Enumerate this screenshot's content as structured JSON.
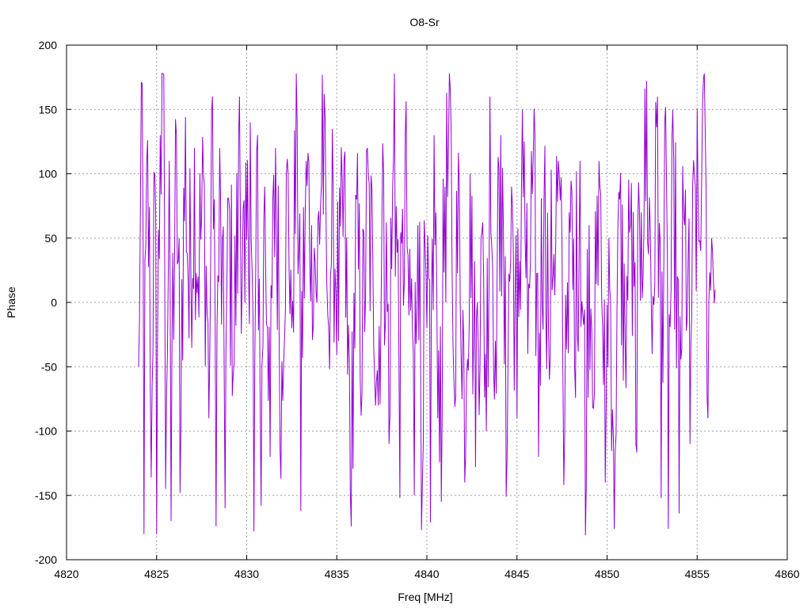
{
  "chart_data": {
    "type": "line",
    "title": "O8-Sr",
    "xlabel": "Freq [MHz]",
    "ylabel": "Phase",
    "xlim": [
      4820,
      4860
    ],
    "ylim": [
      -200,
      200
    ],
    "xticks": [
      4820,
      4825,
      4830,
      4835,
      4840,
      4845,
      4850,
      4855,
      4860
    ],
    "yticks": [
      -200,
      -150,
      -100,
      -50,
      0,
      50,
      100,
      150,
      200
    ],
    "xtick_labels": [
      "4820",
      "4825",
      "4830",
      "4835",
      "4840",
      "4845",
      "4850",
      "4855",
      "4860"
    ],
    "ytick_labels": [
      "-200",
      "-150",
      "-100",
      "-50",
      "0",
      "50",
      "100",
      "150",
      "200"
    ],
    "grid": true,
    "legend": "none",
    "series": [
      {
        "color": "#9400d3",
        "x_range": [
          4824.0,
          4856.0
        ],
        "x_step": 0.05,
        "control_points": [
          [
            4824.0,
            -50
          ],
          [
            4824.2,
            170
          ],
          [
            4824.3,
            -180
          ],
          [
            4824.5,
            126
          ],
          [
            4824.7,
            -136
          ],
          [
            4824.9,
            100
          ],
          [
            4825.0,
            -180
          ],
          [
            4825.2,
            130
          ],
          [
            4825.4,
            177
          ],
          [
            4825.5,
            -145
          ],
          [
            4825.7,
            110
          ],
          [
            4825.8,
            -170
          ],
          [
            4826.1,
            130
          ],
          [
            4826.3,
            -148
          ],
          [
            4826.6,
            144
          ],
          [
            4826.8,
            -28
          ],
          [
            4827.1,
            120
          ],
          [
            4827.3,
            20
          ],
          [
            4827.6,
            100
          ],
          [
            4827.9,
            -90
          ],
          [
            4828.1,
            160
          ],
          [
            4828.3,
            -174
          ],
          [
            4828.5,
            120
          ],
          [
            4828.8,
            -160
          ],
          [
            4829.0,
            80
          ],
          [
            4829.3,
            -48
          ],
          [
            4829.6,
            160
          ],
          [
            4829.9,
            0
          ],
          [
            4830.2,
            140
          ],
          [
            4830.4,
            -178
          ],
          [
            4830.6,
            130
          ],
          [
            4830.8,
            -158
          ],
          [
            4831.0,
            90
          ],
          [
            4831.3,
            -120
          ],
          [
            4831.6,
            120
          ],
          [
            4831.9,
            -137
          ],
          [
            4832.2,
            100
          ],
          [
            4832.5,
            -20
          ],
          [
            4832.8,
            140
          ],
          [
            4833.0,
            -162
          ],
          [
            4833.3,
            110
          ],
          [
            4833.6,
            60
          ],
          [
            4833.9,
            0
          ],
          [
            4834.2,
            177
          ],
          [
            4834.5,
            -10
          ],
          [
            4834.8,
            90
          ],
          [
            4835.1,
            -30
          ],
          [
            4835.4,
            110
          ],
          [
            4835.6,
            -56
          ],
          [
            4835.8,
            -174
          ],
          [
            4836.1,
            80
          ],
          [
            4836.4,
            -70
          ],
          [
            4836.7,
            120
          ],
          [
            4837.0,
            30
          ],
          [
            4837.3,
            -80
          ],
          [
            4837.6,
            100
          ],
          [
            4837.9,
            -110
          ],
          [
            4838.2,
            180
          ],
          [
            4838.5,
            -152
          ],
          [
            4838.8,
            130
          ],
          [
            4839.0,
            -10
          ],
          [
            4839.3,
            -150
          ],
          [
            4839.5,
            60
          ],
          [
            4839.7,
            -177
          ],
          [
            4840.0,
            -20
          ],
          [
            4840.2,
            -171
          ],
          [
            4840.4,
            130
          ],
          [
            4840.6,
            -90
          ],
          [
            4840.8,
            -155
          ],
          [
            4841.0,
            90
          ],
          [
            4841.3,
            165
          ],
          [
            4841.5,
            -60
          ],
          [
            4841.8,
            90
          ],
          [
            4842.1,
            -140
          ],
          [
            4842.4,
            100
          ],
          [
            4842.7,
            -128
          ],
          [
            4843.0,
            50
          ],
          [
            4843.3,
            -100
          ],
          [
            4843.5,
            160
          ],
          [
            4843.8,
            -30
          ],
          [
            4844.1,
            130
          ],
          [
            4844.4,
            -151
          ],
          [
            4844.7,
            90
          ],
          [
            4845.0,
            -90
          ],
          [
            4845.3,
            150
          ],
          [
            4845.6,
            -40
          ],
          [
            4845.9,
            110
          ],
          [
            4846.2,
            -120
          ],
          [
            4846.5,
            80
          ],
          [
            4846.8,
            -60
          ],
          [
            4847.0,
            20
          ],
          [
            4847.3,
            110
          ],
          [
            4847.6,
            -142
          ],
          [
            4847.9,
            70
          ],
          [
            4848.2,
            -50
          ],
          [
            4848.5,
            110
          ],
          [
            4848.8,
            -181
          ],
          [
            4849.0,
            60
          ],
          [
            4849.3,
            -70
          ],
          [
            4849.6,
            90
          ],
          [
            4849.9,
            -140
          ],
          [
            4850.1,
            50
          ],
          [
            4850.4,
            -176
          ],
          [
            4850.7,
            80
          ],
          [
            4851.0,
            -30
          ],
          [
            4851.3,
            60
          ],
          [
            4851.6,
            -110
          ],
          [
            4851.9,
            70
          ],
          [
            4852.2,
            172
          ],
          [
            4852.5,
            -40
          ],
          [
            4852.8,
            160
          ],
          [
            4853.0,
            -152
          ],
          [
            4853.2,
            140
          ],
          [
            4853.4,
            -176
          ],
          [
            4853.7,
            110
          ],
          [
            4854.0,
            -164
          ],
          [
            4854.3,
            60
          ],
          [
            4854.6,
            -110
          ],
          [
            4854.9,
            90
          ],
          [
            4855.2,
            40
          ],
          [
            4855.4,
            178
          ],
          [
            4855.6,
            -90
          ],
          [
            4855.8,
            50
          ],
          [
            4856.0,
            10
          ]
        ]
      }
    ]
  }
}
